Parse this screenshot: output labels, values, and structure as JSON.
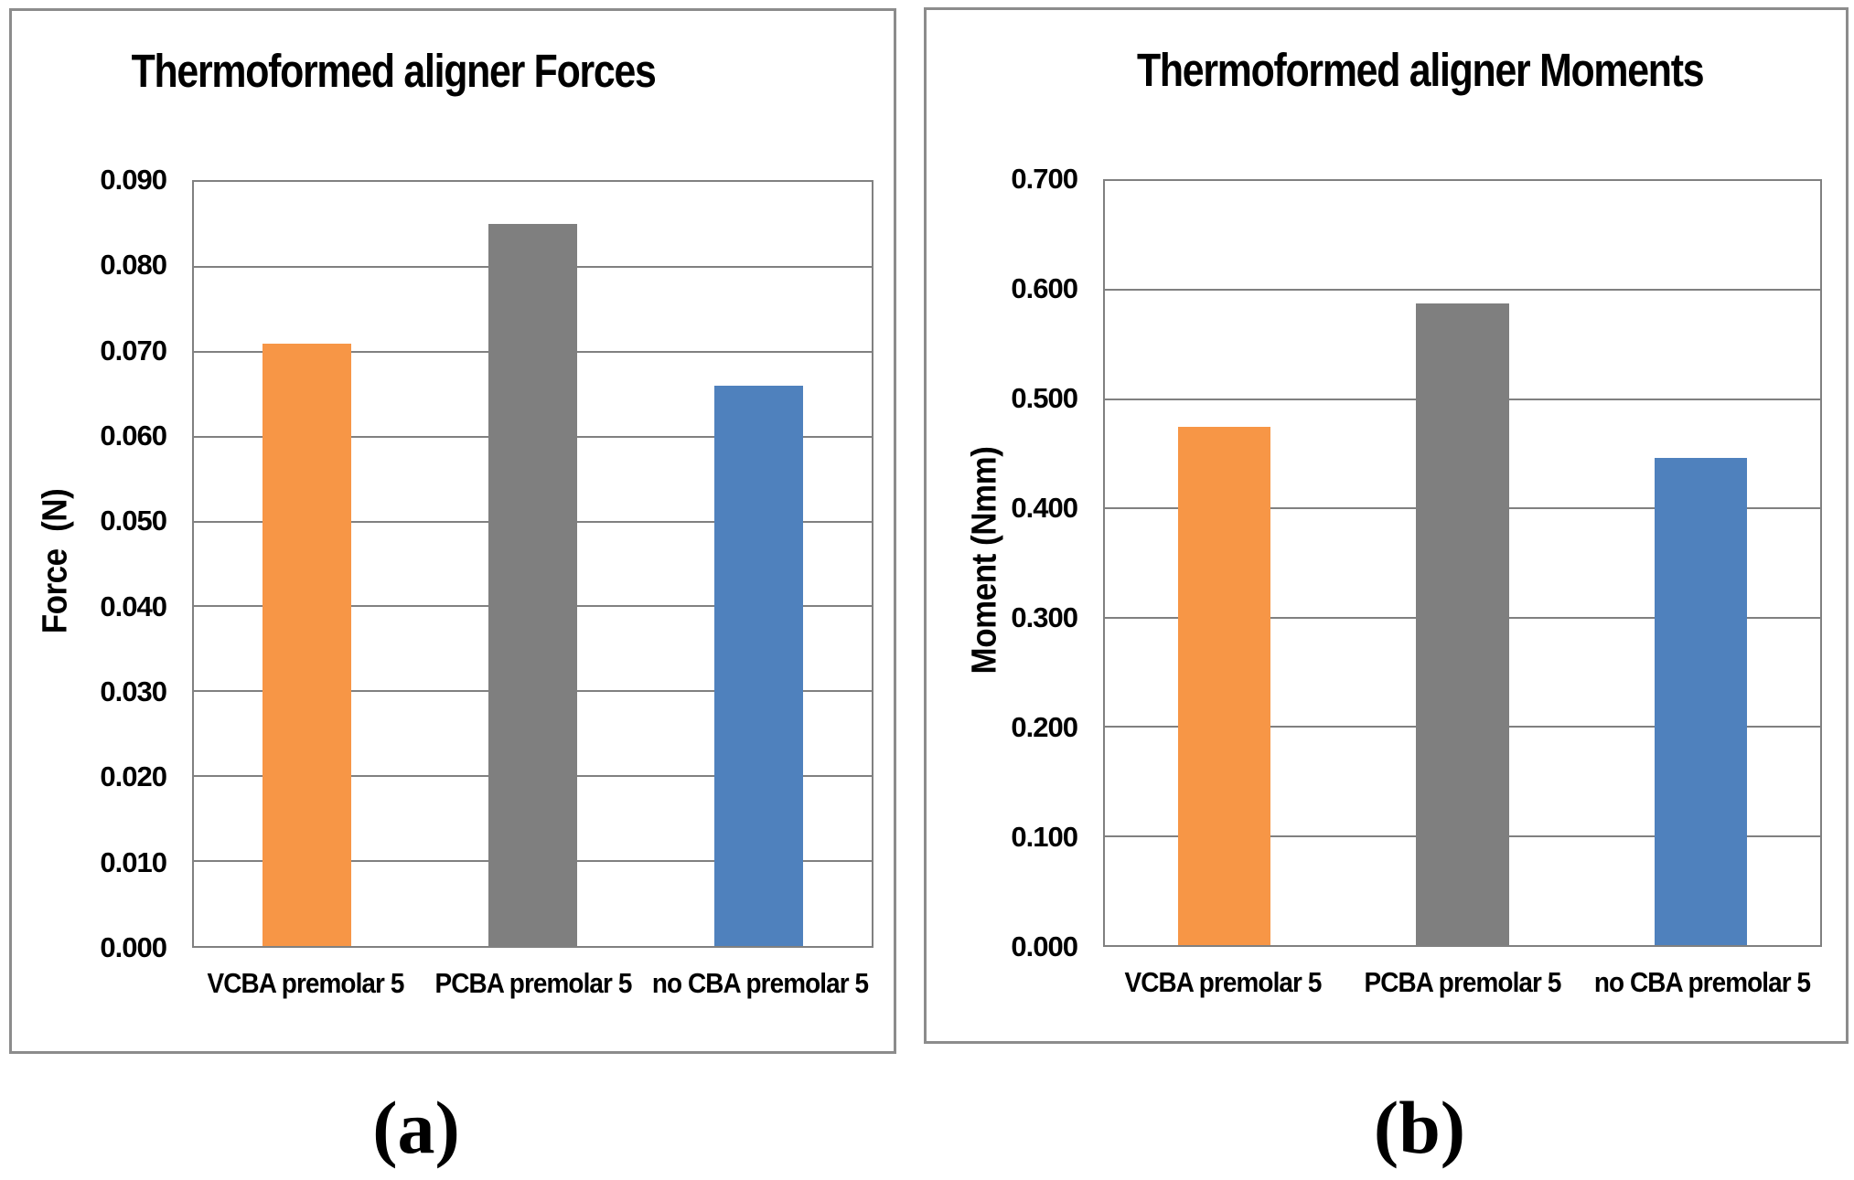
{
  "figure": {
    "background": "#ffffff",
    "panel_border_color": "#8c8c8c",
    "grid_color": "#808080",
    "text_color": "#000000"
  },
  "chart_data": [
    {
      "type": "bar",
      "title": "Thermoformed aligner Forces",
      "ylabel": "Force  (N)",
      "xlabel": "",
      "categories": [
        "VCBA premolar 5",
        "PCBA premolar 5",
        "no CBA premolar 5"
      ],
      "values": [
        0.071,
        0.085,
        0.066
      ],
      "ylim": [
        0,
        0.09
      ],
      "ytick_labels": [
        "0.090",
        "0.080",
        "0.070",
        "0.060",
        "0.050",
        "0.040",
        "0.030",
        "0.020",
        "0.010",
        "0.000"
      ],
      "bar_colors": [
        "#F79646",
        "#7F7F7F",
        "#4F81BD"
      ],
      "grid": true,
      "legend": "none",
      "caption": "(a)"
    },
    {
      "type": "bar",
      "title": "Thermoformed aligner Moments",
      "ylabel": "Moment (Nmm)",
      "xlabel": "",
      "categories": [
        "VCBA premolar 5",
        "PCBA premolar 5",
        "no CBA premolar 5"
      ],
      "values": [
        0.475,
        0.588,
        0.446
      ],
      "ylim": [
        0,
        0.7
      ],
      "ytick_labels": [
        "0.700",
        "0.600",
        "0.500",
        "0.400",
        "0.300",
        "0.200",
        "0.100",
        "0.000"
      ],
      "bar_colors": [
        "#F79646",
        "#7F7F7F",
        "#4F81BD"
      ],
      "grid": true,
      "legend": "none",
      "caption": "(b)"
    }
  ]
}
